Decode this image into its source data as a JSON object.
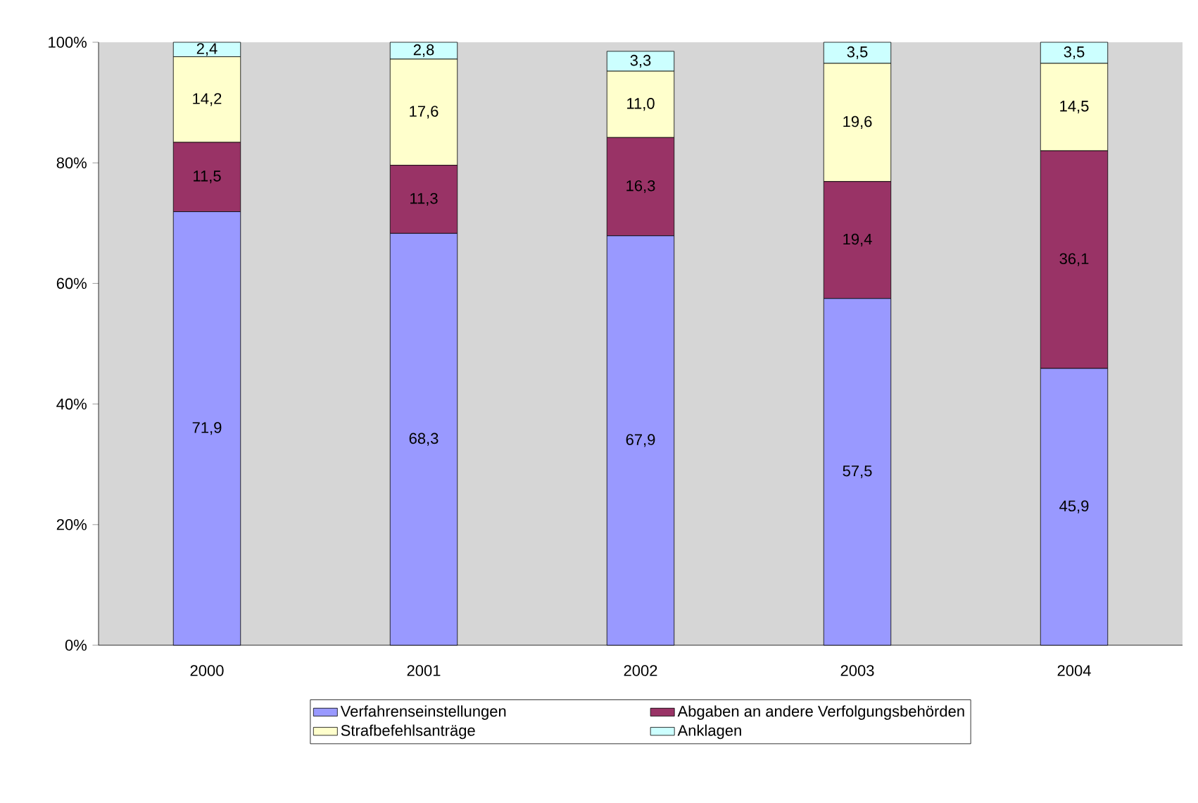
{
  "chart_data": {
    "type": "bar",
    "stacked": true,
    "categories": [
      "2000",
      "2001",
      "2002",
      "2003",
      "2004"
    ],
    "series": [
      {
        "name": "Verfahrenseinstellungen",
        "color": "#9999ff",
        "values": [
          71.9,
          68.3,
          67.9,
          57.5,
          45.9
        ],
        "value_labels": [
          "71,9",
          "68,3",
          "67,9",
          "57,5",
          "45,9"
        ]
      },
      {
        "name": "Abgaben an andere Verfolgungsbehörden",
        "color": "#993366",
        "values": [
          11.5,
          11.3,
          16.3,
          19.4,
          36.1
        ],
        "value_labels": [
          "11,5",
          "11,3",
          "16,3",
          "19,4",
          "36,1"
        ]
      },
      {
        "name": "Strafbefehlsanträge",
        "color": "#ffffcc",
        "values": [
          14.2,
          17.6,
          11.0,
          19.6,
          14.5
        ],
        "value_labels": [
          "14,2",
          "17,6",
          "11,0",
          "19,6",
          "14,5"
        ]
      },
      {
        "name": "Anklagen",
        "color": "#ccffff",
        "values": [
          2.4,
          2.8,
          3.3,
          3.5,
          3.5
        ],
        "value_labels": [
          "2,4",
          "2,8",
          "3,3",
          "3,5",
          "3,5"
        ]
      }
    ],
    "ylim": [
      0,
      100
    ],
    "yticks": [
      {
        "value": 0,
        "label": "0%"
      },
      {
        "value": 20,
        "label": "20%"
      },
      {
        "value": 40,
        "label": "40%"
      },
      {
        "value": 60,
        "label": "60%"
      },
      {
        "value": 80,
        "label": "80%"
      },
      {
        "value": 100,
        "label": "100%"
      }
    ],
    "legend": "bottom"
  }
}
